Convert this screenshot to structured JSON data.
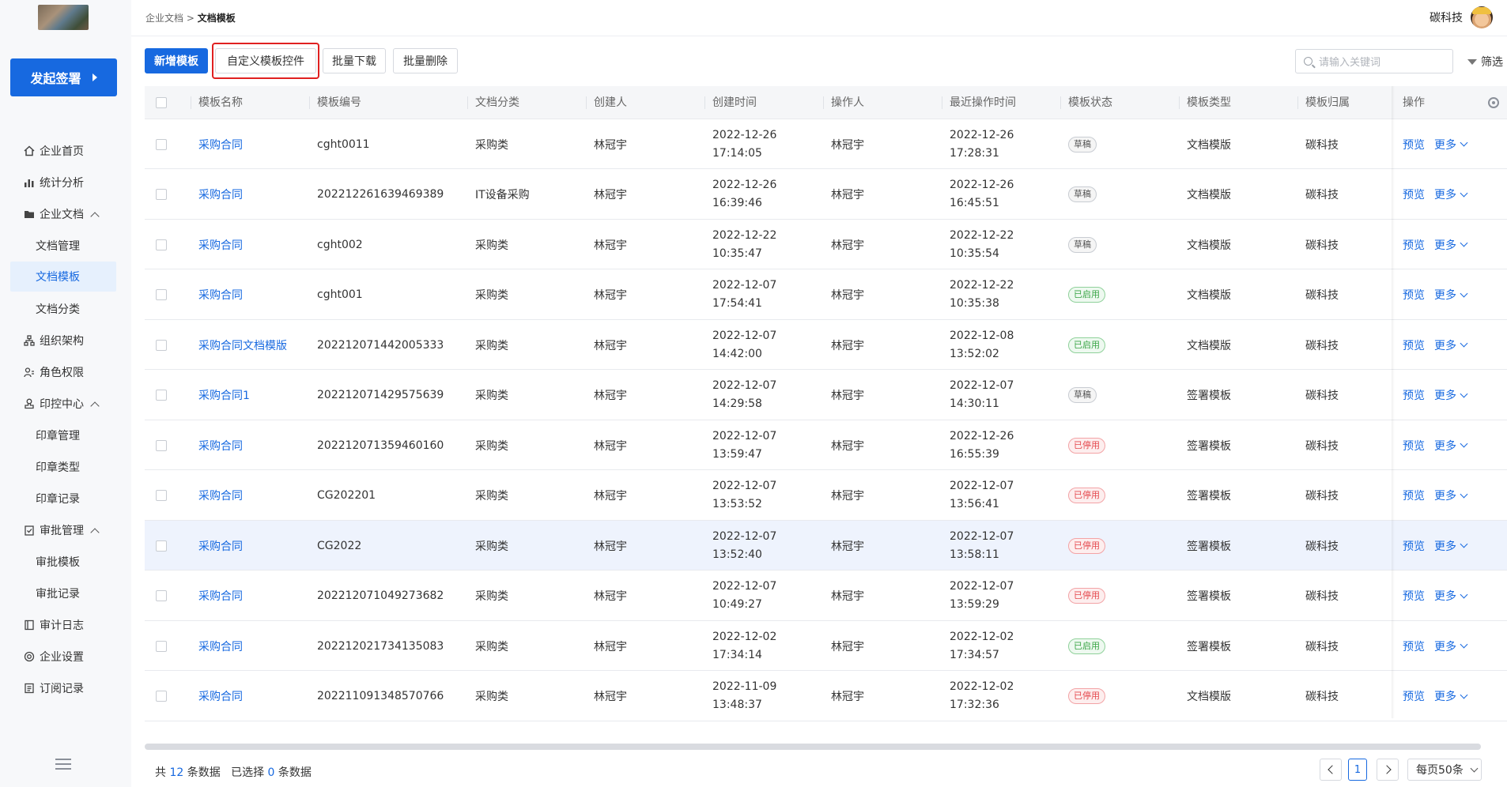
{
  "sidebar": {
    "start_button": "发起签署",
    "items": [
      {
        "label": "企业首页",
        "icon": "home-icon"
      },
      {
        "label": "统计分析",
        "icon": "chart-icon"
      },
      {
        "label": "企业文档",
        "icon": "folder-icon"
      },
      {
        "label": "文档管理"
      },
      {
        "label": "文档模板"
      },
      {
        "label": "文档分类"
      },
      {
        "label": "组织架构",
        "icon": "org-icon"
      },
      {
        "label": "角色权限",
        "icon": "role-icon"
      },
      {
        "label": "印控中心",
        "icon": "seal-icon"
      },
      {
        "label": "印章管理"
      },
      {
        "label": "印章类型"
      },
      {
        "label": "印章记录"
      },
      {
        "label": "审批管理",
        "icon": "approval-icon"
      },
      {
        "label": "审批模板"
      },
      {
        "label": "审批记录"
      },
      {
        "label": "审计日志",
        "icon": "audit-icon"
      },
      {
        "label": "企业设置",
        "icon": "settings-icon"
      },
      {
        "label": "订阅记录",
        "icon": "subscription-icon"
      }
    ]
  },
  "topbar": {
    "breadcrumb_parent": "企业文档",
    "breadcrumb_sep": ">",
    "breadcrumb_current": "文档模板",
    "user_name": "碳科技"
  },
  "toolbar": {
    "new_template": "新增模板",
    "custom_controls": "自定义模板控件",
    "batch_download": "批量下载",
    "batch_delete": "批量删除",
    "search_placeholder": "请输入关键词",
    "filter": "筛选"
  },
  "table": {
    "headers": [
      "模板名称",
      "模板编号",
      "文档分类",
      "创建人",
      "创建时间",
      "操作人",
      "最近操作时间",
      "模板状态",
      "模板类型",
      "模板归属",
      "操作"
    ],
    "preview_label": "预览",
    "more_label": "更多",
    "rows": [
      {
        "name": "采购合同",
        "code": "cght0011",
        "category": "采购类",
        "creator": "林冠宇",
        "created_date": "2022-12-26",
        "created_time": "17:14:05",
        "operator": "林冠宇",
        "op_date": "2022-12-26",
        "op_time": "17:28:31",
        "status": "草稿",
        "type": "文档模版",
        "owner": "碳科技"
      },
      {
        "name": "采购合同",
        "code": "202212261639469389",
        "category": "IT设备采购",
        "creator": "林冠宇",
        "created_date": "2022-12-26",
        "created_time": "16:39:46",
        "operator": "林冠宇",
        "op_date": "2022-12-26",
        "op_time": "16:45:51",
        "status": "草稿",
        "type": "文档模版",
        "owner": "碳科技"
      },
      {
        "name": "采购合同",
        "code": "cght002",
        "category": "采购类",
        "creator": "林冠宇",
        "created_date": "2022-12-22",
        "created_time": "10:35:47",
        "operator": "林冠宇",
        "op_date": "2022-12-22",
        "op_time": "10:35:54",
        "status": "草稿",
        "type": "文档模版",
        "owner": "碳科技"
      },
      {
        "name": "采购合同",
        "code": "cght001",
        "category": "采购类",
        "creator": "林冠宇",
        "created_date": "2022-12-07",
        "created_time": "17:54:41",
        "operator": "林冠宇",
        "op_date": "2022-12-22",
        "op_time": "10:35:38",
        "status": "已启用",
        "type": "文档模版",
        "owner": "碳科技"
      },
      {
        "name": "采购合同文档模版",
        "code": "202212071442005333",
        "category": "采购类",
        "creator": "林冠宇",
        "created_date": "2022-12-07",
        "created_time": "14:42:00",
        "operator": "林冠宇",
        "op_date": "2022-12-08",
        "op_time": "13:52:02",
        "status": "已启用",
        "type": "文档模版",
        "owner": "碳科技"
      },
      {
        "name": "采购合同1",
        "code": "202212071429575639",
        "category": "采购类",
        "creator": "林冠宇",
        "created_date": "2022-12-07",
        "created_time": "14:29:58",
        "operator": "林冠宇",
        "op_date": "2022-12-07",
        "op_time": "14:30:11",
        "status": "草稿",
        "type": "签署模板",
        "owner": "碳科技"
      },
      {
        "name": "采购合同",
        "code": "202212071359460160",
        "category": "采购类",
        "creator": "林冠宇",
        "created_date": "2022-12-07",
        "created_time": "13:59:47",
        "operator": "林冠宇",
        "op_date": "2022-12-26",
        "op_time": "16:55:39",
        "status": "已停用",
        "type": "签署模板",
        "owner": "碳科技"
      },
      {
        "name": "采购合同",
        "code": "CG202201",
        "category": "采购类",
        "creator": "林冠宇",
        "created_date": "2022-12-07",
        "created_time": "13:53:52",
        "operator": "林冠宇",
        "op_date": "2022-12-07",
        "op_time": "13:56:41",
        "status": "已停用",
        "type": "签署模板",
        "owner": "碳科技"
      },
      {
        "name": "采购合同",
        "code": "CG2022",
        "category": "采购类",
        "creator": "林冠宇",
        "created_date": "2022-12-07",
        "created_time": "13:52:40",
        "operator": "林冠宇",
        "op_date": "2022-12-07",
        "op_time": "13:58:11",
        "status": "已停用",
        "type": "签署模板",
        "owner": "碳科技"
      },
      {
        "name": "采购合同",
        "code": "202212071049273682",
        "category": "采购类",
        "creator": "林冠宇",
        "created_date": "2022-12-07",
        "created_time": "10:49:27",
        "operator": "林冠宇",
        "op_date": "2022-12-07",
        "op_time": "13:59:29",
        "status": "已停用",
        "type": "签署模板",
        "owner": "碳科技"
      },
      {
        "name": "采购合同",
        "code": "202212021734135083",
        "category": "采购类",
        "creator": "林冠宇",
        "created_date": "2022-12-02",
        "created_time": "17:34:14",
        "operator": "林冠宇",
        "op_date": "2022-12-02",
        "op_time": "17:34:57",
        "status": "已启用",
        "type": "签署模板",
        "owner": "碳科技"
      },
      {
        "name": "采购合同",
        "code": "202211091348570766",
        "category": "采购类",
        "creator": "林冠宇",
        "created_date": "2022-11-09",
        "created_time": "13:48:37",
        "operator": "林冠宇",
        "op_date": "2022-12-02",
        "op_time": "17:32:36",
        "status": "已停用",
        "type": "文档模版",
        "owner": "碳科技"
      }
    ]
  },
  "footer": {
    "total_prefix": "共",
    "total": "12",
    "total_suffix": "条数据",
    "selected_prefix": "已选择",
    "selected": "0",
    "selected_suffix": "条数据",
    "current_page": "1",
    "page_size": "每页50条"
  },
  "colors": {
    "accent": "#1769e0",
    "highlight_box": "#e02020",
    "enabled": "#3aa546",
    "disabled": "#e5484d"
  }
}
